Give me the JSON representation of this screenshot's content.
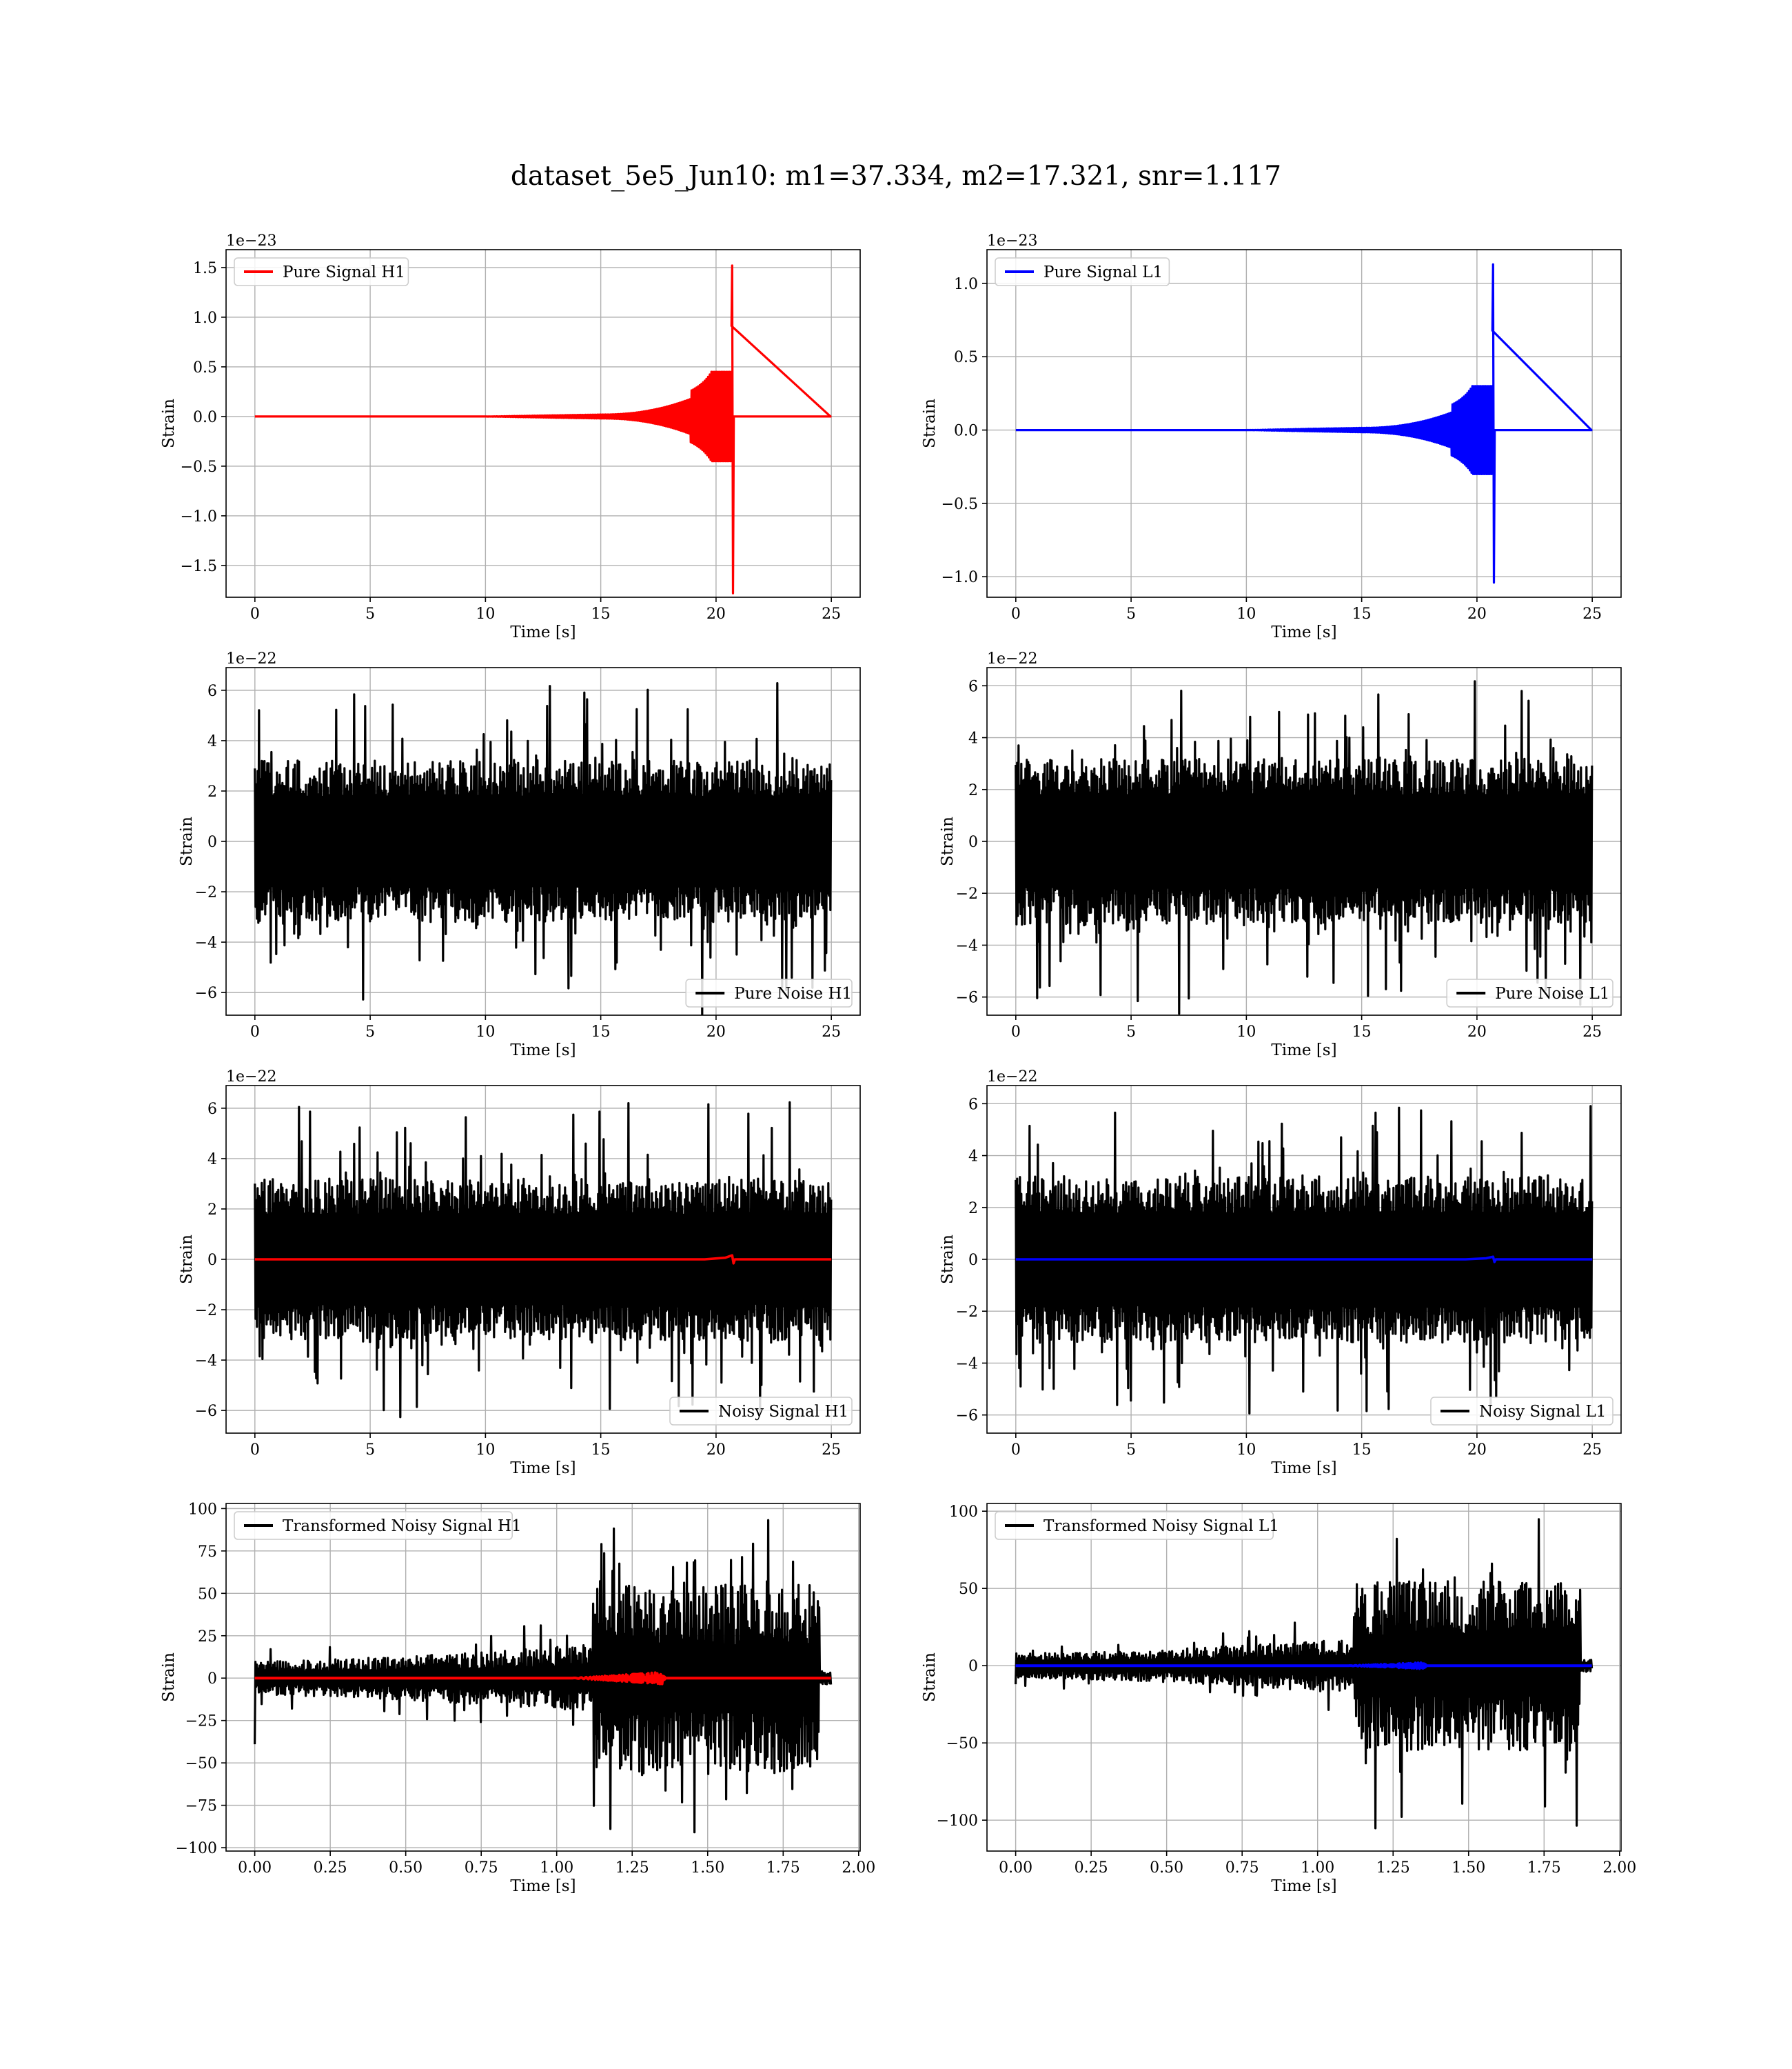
{
  "figure": {
    "suptitle": "dataset_5e5_Jun10: m1=37.334, m2=17.321, snr=1.117"
  },
  "colors": {
    "h1_signal": "#ff0000",
    "l1_signal": "#0000ff",
    "noise": "#000000",
    "grid": "#b0b0b0"
  },
  "chart_data": [
    {
      "id": "pure-signal-h1",
      "type": "line",
      "xlabel": "Time [s]",
      "ylabel": "Strain",
      "offset_text": "1e−23",
      "xlim": [
        -1.25,
        26.25
      ],
      "ylim": [
        -1.82,
        1.68
      ],
      "xticks": [
        0,
        5,
        10,
        15,
        20,
        25
      ],
      "xtick_labels": [
        "0",
        "5",
        "10",
        "15",
        "20",
        "25"
      ],
      "yticks": [
        -1.5,
        -1.0,
        -0.5,
        0.0,
        0.5,
        1.0,
        1.5
      ],
      "ytick_labels": [
        "−1.5",
        "−1.0",
        "−0.5",
        "0.0",
        "0.5",
        "1.0",
        "1.5"
      ],
      "grid": true,
      "legend_loc": "upper left",
      "series": [
        {
          "name": "Pure Signal H1",
          "color": "#ff0000",
          "kind": "chirp",
          "x_start": 0,
          "x_end": 25,
          "t_merger": 20.7,
          "t_onset": 15.0,
          "peak_max": 1.52,
          "peak_min": -1.78,
          "pre_env": 0.45,
          "onset_env": 0.02
        }
      ]
    },
    {
      "id": "pure-signal-l1",
      "type": "line",
      "xlabel": "Time [s]",
      "ylabel": "Strain",
      "offset_text": "1e−23",
      "xlim": [
        -1.25,
        26.25
      ],
      "ylim": [
        -1.14,
        1.23
      ],
      "xticks": [
        0,
        5,
        10,
        15,
        20,
        25
      ],
      "xtick_labels": [
        "0",
        "5",
        "10",
        "15",
        "20",
        "25"
      ],
      "yticks": [
        -1.0,
        -0.5,
        0.0,
        0.5,
        1.0
      ],
      "ytick_labels": [
        "−1.0",
        "−0.5",
        "0.0",
        "0.5",
        "1.0"
      ],
      "grid": true,
      "legend_loc": "upper left",
      "series": [
        {
          "name": "Pure Signal L1",
          "color": "#0000ff",
          "kind": "chirp",
          "x_start": 0,
          "x_end": 25,
          "t_merger": 20.7,
          "t_onset": 15.0,
          "peak_max": 1.13,
          "peak_min": -1.04,
          "pre_env": 0.3,
          "onset_env": 0.015
        }
      ]
    },
    {
      "id": "pure-noise-h1",
      "type": "line",
      "xlabel": "Time [s]",
      "ylabel": "Strain",
      "offset_text": "1e−22",
      "xlim": [
        -1.25,
        26.25
      ],
      "ylim": [
        -6.9,
        6.9
      ],
      "xticks": [
        0,
        5,
        10,
        15,
        20,
        25
      ],
      "xtick_labels": [
        "0",
        "5",
        "10",
        "15",
        "20",
        "25"
      ],
      "yticks": [
        -6,
        -4,
        -2,
        0,
        2,
        4,
        6
      ],
      "ytick_labels": [
        "−6",
        "−4",
        "−2",
        "0",
        "2",
        "4",
        "6"
      ],
      "grid": true,
      "legend_loc": "lower right",
      "series": [
        {
          "name": "Pure Noise H1",
          "color": "#000000",
          "kind": "noise",
          "x_start": 0,
          "x_end": 25,
          "amp_max": 6.3,
          "amp_min": -6.3,
          "band": 3.2
        }
      ]
    },
    {
      "id": "pure-noise-l1",
      "type": "line",
      "xlabel": "Time [s]",
      "ylabel": "Strain",
      "offset_text": "1e−22",
      "xlim": [
        -1.25,
        26.25
      ],
      "ylim": [
        -6.7,
        6.7
      ],
      "xticks": [
        0,
        5,
        10,
        15,
        20,
        25
      ],
      "xtick_labels": [
        "0",
        "5",
        "10",
        "15",
        "20",
        "25"
      ],
      "yticks": [
        -6,
        -4,
        -2,
        0,
        2,
        4,
        6
      ],
      "ytick_labels": [
        "−6",
        "−4",
        "−2",
        "0",
        "2",
        "4",
        "6"
      ],
      "grid": true,
      "legend_loc": "lower right",
      "series": [
        {
          "name": "Pure Noise L1",
          "color": "#000000",
          "kind": "noise",
          "x_start": 0,
          "x_end": 25,
          "amp_max": 6.2,
          "amp_min": -6.2,
          "band": 3.2
        }
      ]
    },
    {
      "id": "noisy-signal-h1",
      "type": "line",
      "xlabel": "Time [s]",
      "ylabel": "Strain",
      "offset_text": "1e−22",
      "xlim": [
        -1.25,
        26.25
      ],
      "ylim": [
        -6.9,
        6.9
      ],
      "xticks": [
        0,
        5,
        10,
        15,
        20,
        25
      ],
      "xtick_labels": [
        "0",
        "5",
        "10",
        "15",
        "20",
        "25"
      ],
      "yticks": [
        -6,
        -4,
        -2,
        0,
        2,
        4,
        6
      ],
      "ytick_labels": [
        "−6",
        "−4",
        "−2",
        "0",
        "2",
        "4",
        "6"
      ],
      "grid": true,
      "legend_loc": "lower right",
      "series": [
        {
          "name": "Noisy Signal H1",
          "color": "#000000",
          "kind": "noise",
          "x_start": 0,
          "x_end": 25,
          "amp_max": 6.3,
          "amp_min": -6.3,
          "band": 3.2
        },
        {
          "name": "",
          "color": "#ff0000",
          "kind": "overlay-line",
          "x_start": 0,
          "x_end": 25,
          "y": 0,
          "blip_at": 20.7,
          "blip_amp": 0.16
        }
      ]
    },
    {
      "id": "noisy-signal-l1",
      "type": "line",
      "xlabel": "Time [s]",
      "ylabel": "Strain",
      "offset_text": "1e−22",
      "xlim": [
        -1.25,
        26.25
      ],
      "ylim": [
        -6.7,
        6.7
      ],
      "xticks": [
        0,
        5,
        10,
        15,
        20,
        25
      ],
      "xtick_labels": [
        "0",
        "5",
        "10",
        "15",
        "20",
        "25"
      ],
      "yticks": [
        -6,
        -4,
        -2,
        0,
        2,
        4,
        6
      ],
      "ytick_labels": [
        "−6",
        "−4",
        "−2",
        "0",
        "2",
        "4",
        "6"
      ],
      "grid": true,
      "legend_loc": "lower right",
      "series": [
        {
          "name": "Noisy Signal L1",
          "color": "#000000",
          "kind": "noise",
          "x_start": 0,
          "x_end": 25,
          "amp_max": 6.2,
          "amp_min": -6.2,
          "band": 3.2
        },
        {
          "name": "",
          "color": "#0000ff",
          "kind": "overlay-line",
          "x_start": 0,
          "x_end": 25,
          "y": 0,
          "blip_at": 20.7,
          "blip_amp": 0.1
        }
      ]
    },
    {
      "id": "transformed-noisy-signal-h1",
      "type": "line",
      "xlabel": "Time [s]",
      "ylabel": "Strain",
      "offset_text": "",
      "xlim": [
        -0.095,
        2.005
      ],
      "ylim": [
        -102,
        103
      ],
      "xticks": [
        0.0,
        0.25,
        0.5,
        0.75,
        1.0,
        1.25,
        1.5,
        1.75,
        2.0
      ],
      "xtick_labels": [
        "0.00",
        "0.25",
        "0.50",
        "0.75",
        "1.00",
        "1.25",
        "1.50",
        "1.75",
        "2.00"
      ],
      "yticks": [
        -100,
        -75,
        -50,
        -25,
        0,
        25,
        50,
        75,
        100
      ],
      "ytick_labels": [
        "−100",
        "−75",
        "−50",
        "−25",
        "0",
        "25",
        "50",
        "75",
        "100"
      ],
      "grid": true,
      "legend_loc": "upper left",
      "series": [
        {
          "name": "Transformed Noisy Signal H1",
          "color": "#000000",
          "kind": "whitened",
          "x_start": 0,
          "x_end": 1.91,
          "step_at": 1.12,
          "step_end": 1.87,
          "low_env": 10,
          "low_env_end": 20,
          "high_env": 55,
          "peak": 97,
          "trough": -93,
          "start_spike": -39
        },
        {
          "name": "",
          "color": "#ff0000",
          "kind": "overlay-chirp",
          "x_start": 0,
          "x_end": 1.91,
          "y": 0,
          "chirp_start": 1.05,
          "chirp_end": 1.35,
          "chirp_amp": 3.5
        }
      ]
    },
    {
      "id": "transformed-noisy-signal-l1",
      "type": "line",
      "xlabel": "Time [s]",
      "ylabel": "Strain",
      "offset_text": "",
      "xlim": [
        -0.095,
        2.005
      ],
      "ylim": [
        -120,
        105
      ],
      "xticks": [
        0.0,
        0.25,
        0.5,
        0.75,
        1.0,
        1.25,
        1.5,
        1.75,
        2.0
      ],
      "xtick_labels": [
        "0.00",
        "0.25",
        "0.50",
        "0.75",
        "1.00",
        "1.25",
        "1.50",
        "1.75",
        "2.00"
      ],
      "yticks": [
        -100,
        -50,
        0,
        50,
        100
      ],
      "ytick_labels": [
        "−100",
        "−50",
        "0",
        "50",
        "100"
      ],
      "grid": true,
      "legend_loc": "upper left",
      "series": [
        {
          "name": "Transformed Noisy Signal L1",
          "color": "#000000",
          "kind": "whitened",
          "x_start": 0,
          "x_end": 1.91,
          "step_at": 1.12,
          "step_end": 1.87,
          "low_env": 8,
          "low_env_end": 18,
          "high_env": 55,
          "peak": 98,
          "trough": -110,
          "start_spike": -12
        },
        {
          "name": "",
          "color": "#0000ff",
          "kind": "overlay-chirp",
          "x_start": 0,
          "x_end": 1.91,
          "y": 0,
          "chirp_start": 1.1,
          "chirp_end": 1.35,
          "chirp_amp": 2.0
        }
      ]
    }
  ]
}
